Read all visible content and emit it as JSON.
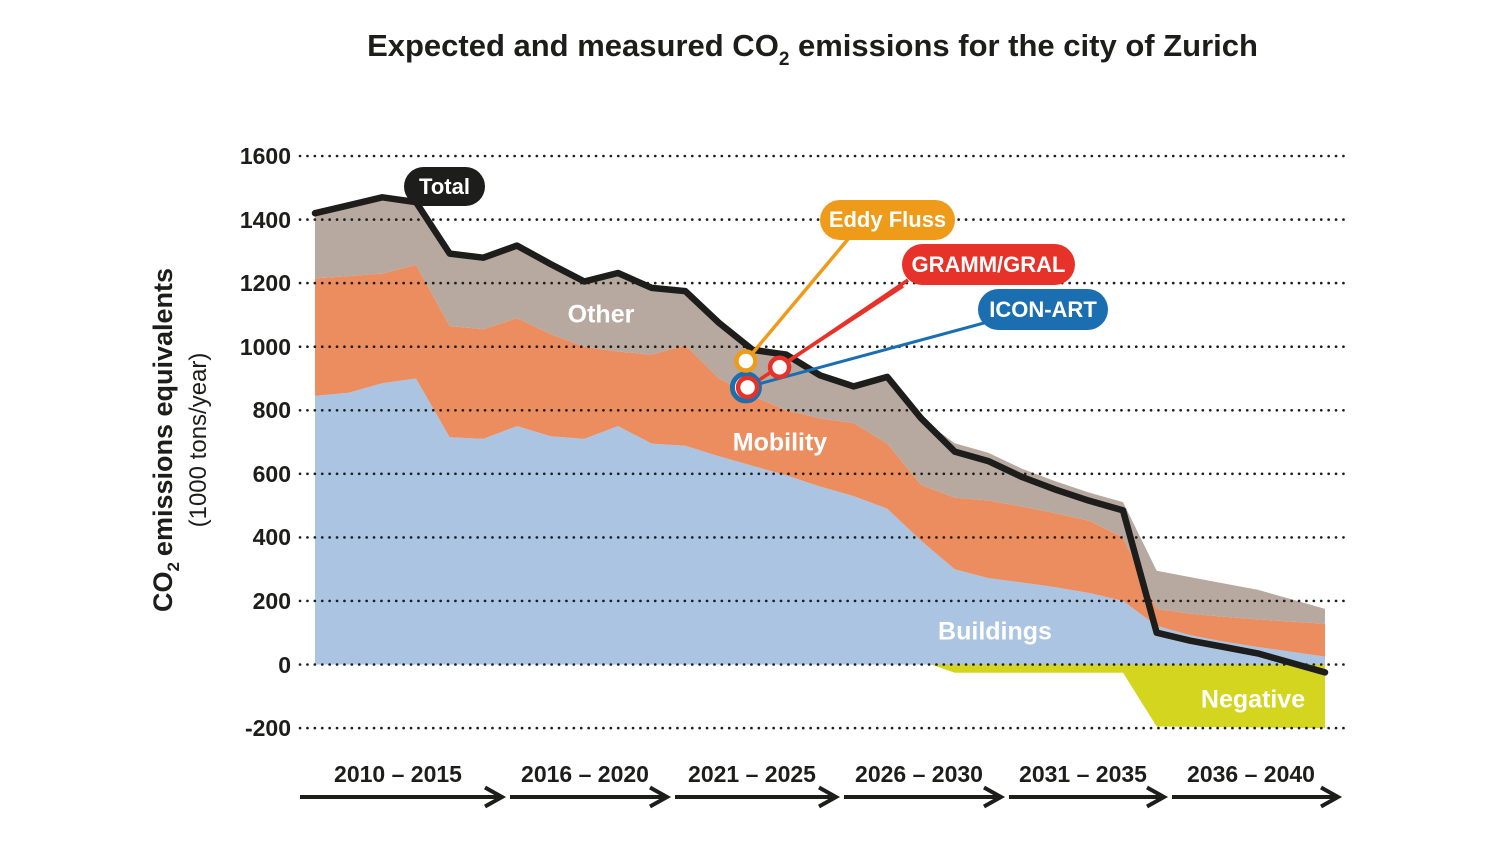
{
  "title": {
    "pre": "Expected and measured CO",
    "sub": "2",
    "post": " emissions for the city of Zurich"
  },
  "y_axis": {
    "label_pre": "CO",
    "label_sub": "2",
    "label_post": "emissions equivalents",
    "label_unit": "(1000 tons/year)",
    "ticks": [
      1600,
      1400,
      1200,
      1000,
      800,
      600,
      400,
      200,
      0,
      -200
    ]
  },
  "x_axis": {
    "periods": [
      "2010 – 2015",
      "2016 – 2020",
      "2021 – 2025",
      "2026 – 2030",
      "2031 – 2035",
      "2036 – 2040"
    ]
  },
  "chart_data": {
    "type": "area",
    "title": "Expected and measured CO2 emissions for the city of Zurich",
    "ylabel": "CO2 emissions equivalents (1000 tons/year)",
    "ylim": [
      -200,
      1600
    ],
    "grid": "dotted",
    "grid_color": "#1d1d1b",
    "years": [
      2010,
      2011,
      2012,
      2013,
      2014,
      2015,
      2016,
      2017,
      2018,
      2019,
      2020,
      2021,
      2022,
      2023,
      2024,
      2025,
      2026,
      2027,
      2028,
      2029,
      2030,
      2031,
      2032,
      2033,
      2034,
      2035,
      2036,
      2037,
      2038,
      2039,
      2040
    ],
    "series": [
      {
        "name": "Buildings",
        "color": "#abc4e2",
        "stack_top": [
          845,
          855,
          885,
          900,
          715,
          710,
          750,
          718,
          710,
          750,
          695,
          688,
          655,
          625,
          595,
          560,
          530,
          490,
          390,
          300,
          272,
          258,
          243,
          225,
          200,
          122,
          92,
          72,
          55,
          40,
          25
        ]
      },
      {
        "name": "Mobility",
        "color": "#eb8d5e",
        "stack_top": [
          1215,
          1222,
          1230,
          1258,
          1065,
          1055,
          1090,
          1040,
          1000,
          985,
          975,
          1005,
          900,
          845,
          800,
          775,
          760,
          695,
          565,
          525,
          516,
          497,
          476,
          452,
          400,
          175,
          160,
          150,
          142,
          135,
          128
        ]
      },
      {
        "name": "Other",
        "color": "#b7a99f",
        "stack_top": [
          1420,
          1445,
          1470,
          1455,
          1293,
          1280,
          1318,
          1260,
          1205,
          1232,
          1185,
          1175,
          1075,
          990,
          975,
          910,
          875,
          905,
          775,
          696,
          666,
          616,
          576,
          541,
          511,
          295,
          275,
          255,
          235,
          205,
          175
        ]
      },
      {
        "name": "Negative",
        "color": "#d3d51f",
        "x": [
          2028.3,
          2029,
          2034,
          2035,
          2040
        ],
        "values": [
          0,
          -26,
          -26,
          -195,
          -200
        ]
      }
    ],
    "total": {
      "label": "Total",
      "color": "#1d1d1b",
      "values": [
        1420,
        1445,
        1470,
        1455,
        1293,
        1280,
        1318,
        1260,
        1205,
        1232,
        1185,
        1175,
        1075,
        990,
        975,
        910,
        875,
        905,
        775,
        670,
        640,
        590,
        550,
        515,
        485,
        100,
        75,
        55,
        35,
        5,
        -25
      ]
    },
    "measurements": [
      {
        "label": "Eddy Fluss",
        "color": "#ef9b1a",
        "points": [
          {
            "year": 2022.8,
            "value": 955
          }
        ]
      },
      {
        "label": "GRAMM/GRAL",
        "color": "#e63229",
        "points": [
          {
            "year": 2023.8,
            "value": 935
          },
          {
            "year": 2022.85,
            "value": 872
          }
        ]
      },
      {
        "label": "ICON-ART",
        "color": "#1b6fb1",
        "points": [
          {
            "year": 2022.8,
            "value": 872
          }
        ]
      }
    ]
  }
}
